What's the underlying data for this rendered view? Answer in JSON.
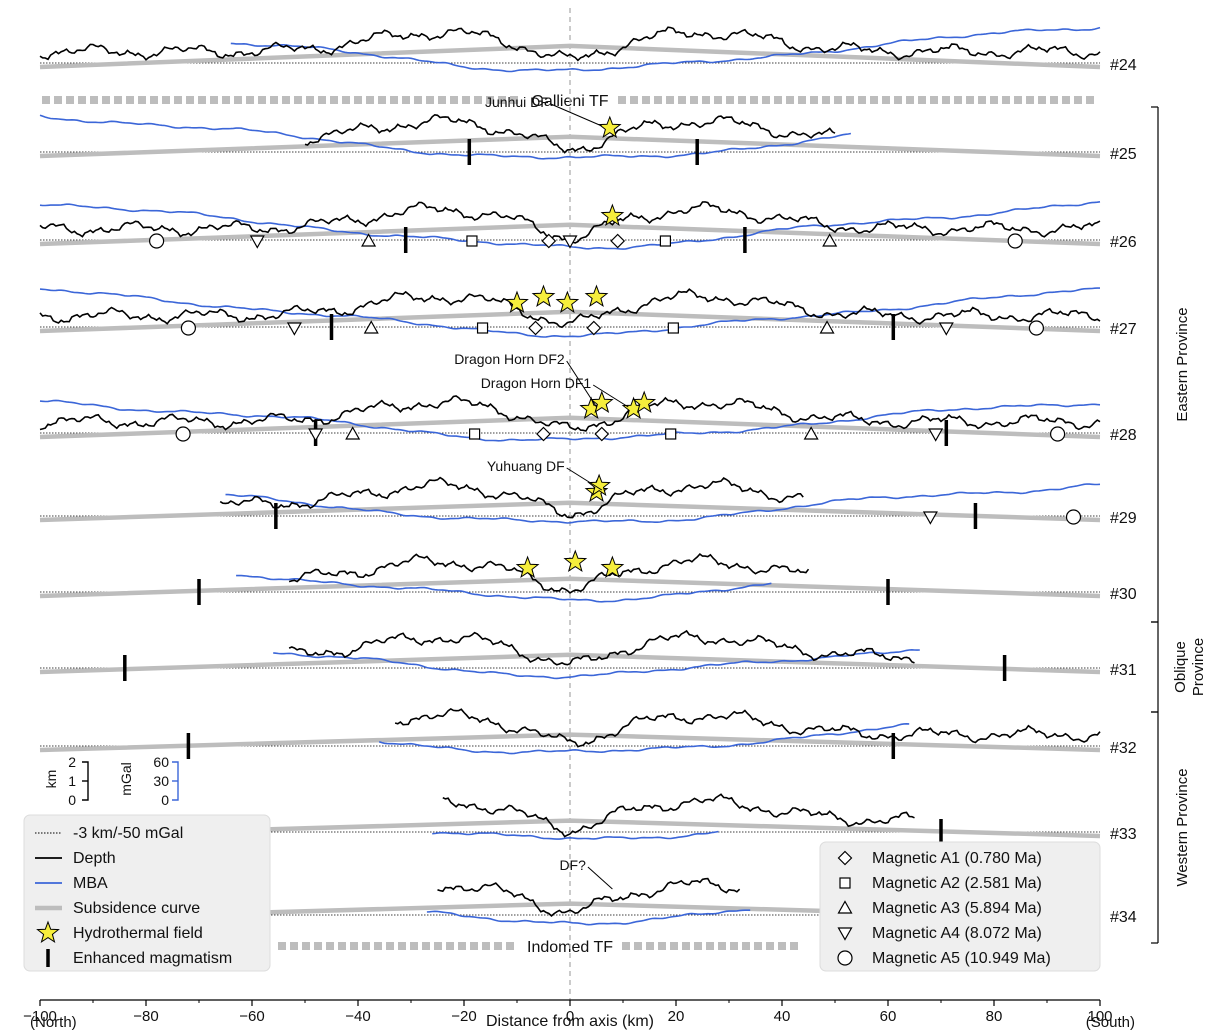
{
  "chart_data": {
    "type": "line",
    "xlabel": "Distance from axis (km)",
    "xlim": [
      -100,
      100
    ],
    "x_ticks": [
      -100,
      -80,
      -60,
      -40,
      -20,
      0,
      20,
      40,
      60,
      80,
      100
    ],
    "x_tick_labels": [
      "−100",
      "−80",
      "−60",
      "−40",
      "−20",
      "0",
      "20",
      "40",
      "60",
      "80",
      "100"
    ],
    "x_end_labels": {
      "left": "(North)",
      "right": "(South)"
    },
    "scale_bars": {
      "depth": {
        "unit": "km",
        "ticks": [
          "2",
          "1",
          "0"
        ]
      },
      "mba": {
        "unit": "mGal",
        "ticks": [
          "60",
          "30",
          "0"
        ]
      }
    },
    "transform_faults": [
      {
        "label": "Gallieni TF",
        "above_profile": "#25"
      },
      {
        "label": "Indomed TF",
        "below_profile": "#34"
      }
    ],
    "provinces": [
      {
        "name": "Eastern Province",
        "from": "#25",
        "to": "#30"
      },
      {
        "name": "Oblique Province",
        "lines": [
          "Oblique",
          "Province"
        ],
        "from": "#31",
        "to": "#31"
      },
      {
        "name": "Western Province",
        "from": "#32",
        "to": "#34"
      }
    ],
    "profiles": [
      {
        "id": "#24",
        "depth_range": [
          -100,
          100
        ],
        "mba_range": [
          -64,
          100
        ],
        "subsidence_peak_km": 0.9,
        "subsidence_end_km": 0,
        "magmatism": [],
        "hydrothermal": [],
        "annotations": [],
        "magnetics": []
      },
      {
        "id": "#25",
        "depth_range": [
          -50,
          50
        ],
        "mba_range": [
          -100,
          53
        ],
        "subsidence_peak_km": 0.8,
        "subsidence_end_km": 0,
        "magmatism": [
          -19,
          24
        ],
        "hydrothermal": [
          7.5
        ],
        "annotations": [
          {
            "text": "Junhui DF",
            "x": -4,
            "target_x": 6
          }
        ],
        "magnetics": []
      },
      {
        "id": "#26",
        "depth_range": [
          -100,
          100
        ],
        "mba_range": [
          -100,
          100
        ],
        "subsidence_peak_km": 0.8,
        "subsidence_end_km": 0,
        "magmatism": [
          -31,
          33
        ],
        "hydrothermal": [
          8
        ],
        "annotations": [],
        "magnetics": [
          {
            "anomaly": "A1",
            "x": [
              -4,
              9
            ]
          },
          {
            "anomaly": "A2",
            "x": [
              -18.5,
              18
            ]
          },
          {
            "anomaly": "A3",
            "x": [
              -38,
              49
            ]
          },
          {
            "anomaly": "A4",
            "x": [
              -59,
              0
            ]
          },
          {
            "anomaly": "A5",
            "x": [
              -78,
              84
            ]
          }
        ]
      },
      {
        "id": "#27",
        "depth_range": [
          -100,
          100
        ],
        "mba_range": [
          -100,
          100
        ],
        "subsidence_peak_km": 0.8,
        "subsidence_end_km": 0,
        "magmatism": [
          -45,
          61
        ],
        "hydrothermal": [
          -10,
          -5,
          -0.5,
          5
        ],
        "annotations": [],
        "magnetics": [
          {
            "anomaly": "A1",
            "x": [
              -6.5,
              4.5
            ]
          },
          {
            "anomaly": "A2",
            "x": [
              -16.5,
              19.5
            ]
          },
          {
            "anomaly": "A3",
            "x": [
              -37.5,
              48.5
            ]
          },
          {
            "anomaly": "A4",
            "x": [
              -52,
              71
            ]
          },
          {
            "anomaly": "A5",
            "x": [
              -72,
              88
            ]
          }
        ]
      },
      {
        "id": "#28",
        "depth_range": [
          -100,
          100
        ],
        "mba_range": [
          -100,
          100
        ],
        "subsidence_peak_km": 0.8,
        "subsidence_end_km": 0,
        "magmatism": [
          -48,
          71
        ],
        "hydrothermal": [
          4,
          6,
          12,
          14
        ],
        "annotations": [
          {
            "text": "Dragon Horn DF1",
            "x": 4,
            "target_x": 11
          },
          {
            "text": "Dragon Horn DF2",
            "x": -1,
            "target_x": 5
          }
        ],
        "magnetics": [
          {
            "anomaly": "A1",
            "x": [
              -5,
              6
            ]
          },
          {
            "anomaly": "A2",
            "x": [
              -18,
              19
            ]
          },
          {
            "anomaly": "A3",
            "x": [
              -41,
              45.5
            ]
          },
          {
            "anomaly": "A4",
            "x": [
              -48,
              69
            ]
          },
          {
            "anomaly": "A5",
            "x": [
              -73,
              92
            ]
          }
        ]
      },
      {
        "id": "#29",
        "depth_range": [
          -66,
          44
        ],
        "mba_range": [
          -65,
          100
        ],
        "subsidence_peak_km": 0.7,
        "subsidence_end_km": 0,
        "magmatism": [
          -55.5,
          76.5
        ],
        "hydrothermal": [
          5,
          5.5
        ],
        "annotations": [
          {
            "text": "Yuhuang DF",
            "x": -1,
            "target_x": 6
          }
        ],
        "magnetics": [
          {
            "anomaly": "A4",
            "x": [
              68
            ]
          },
          {
            "anomaly": "A5",
            "x": [
              95
            ]
          }
        ]
      },
      {
        "id": "#30",
        "depth_range": [
          -53,
          45
        ],
        "mba_range": [
          -63,
          38
        ],
        "subsidence_peak_km": 0.7,
        "subsidence_end_km": 0,
        "magmatism": [
          -70,
          60
        ],
        "hydrothermal": [
          -8,
          1,
          8
        ],
        "annotations": [],
        "magnetics": []
      },
      {
        "id": "#31",
        "depth_range": [
          -53,
          65
        ],
        "mba_range": [
          -56,
          66
        ],
        "subsidence_peak_km": 0.7,
        "subsidence_end_km": 0,
        "magmatism": [
          -84,
          82
        ],
        "hydrothermal": [],
        "annotations": [],
        "magnetics": []
      },
      {
        "id": "#32",
        "depth_range": [
          -33,
          100
        ],
        "mba_range": [
          -36,
          64
        ],
        "subsidence_peak_km": 0.6,
        "subsidence_end_km": 0,
        "magmatism": [
          -72,
          61
        ],
        "hydrothermal": [],
        "annotations": [],
        "magnetics": []
      },
      {
        "id": "#33",
        "depth_range": [
          -24,
          65
        ],
        "mba_range": [
          -26,
          28
        ],
        "subsidence_peak_km": 0.6,
        "subsidence_end_km": 0,
        "magmatism": [
          70
        ],
        "hydrothermal": [],
        "annotations": [],
        "magnetics": []
      },
      {
        "id": "#34",
        "depth_range": [
          -25,
          32
        ],
        "mba_range": [
          -27,
          34
        ],
        "subsidence_peak_km": 0.6,
        "subsidence_end_km": 0,
        "magmatism": [],
        "hydrothermal": [],
        "annotations": [
          {
            "text": "DF?",
            "x": 3,
            "target_x": 8
          }
        ],
        "magnetics": []
      }
    ],
    "legend_left": [
      {
        "key": "ref",
        "label": "-3 km/-50 mGal",
        "color": "#000000",
        "style": "dotted"
      },
      {
        "key": "depth",
        "label": "Depth",
        "color": "#000000",
        "style": "line"
      },
      {
        "key": "mba",
        "label": "MBA",
        "color": "#3b66d8",
        "style": "line"
      },
      {
        "key": "subsidence",
        "label": "Subsidence curve",
        "color": "#bdbdbd",
        "style": "thick"
      },
      {
        "key": "hydro",
        "label": "Hydrothermal field",
        "color": "#f6ee3c",
        "style": "star"
      },
      {
        "key": "magmatism",
        "label": "Enhanced magmatism",
        "color": "#000000",
        "style": "bar"
      }
    ],
    "legend_right": [
      {
        "key": "A1",
        "label": "Magnetic A1 (0.780 Ma)",
        "marker": "diamond"
      },
      {
        "key": "A2",
        "label": "Magnetic A2 (2.581 Ma)",
        "marker": "square"
      },
      {
        "key": "A3",
        "label": "Magnetic A3 (5.894 Ma)",
        "marker": "triangle-up"
      },
      {
        "key": "A4",
        "label": "Magnetic A4 (8.072 Ma)",
        "marker": "triangle-down"
      },
      {
        "key": "A5",
        "label": "Magnetic A5 (10.949 Ma)",
        "marker": "circle"
      }
    ],
    "colors": {
      "depth": "#000000",
      "mba": "#3b66d8",
      "subsidence": "#bdbdbd",
      "hydrothermal": "#f6ee3c",
      "axis_line": "#b5b5b5",
      "tf": "#bdbdbd"
    }
  }
}
